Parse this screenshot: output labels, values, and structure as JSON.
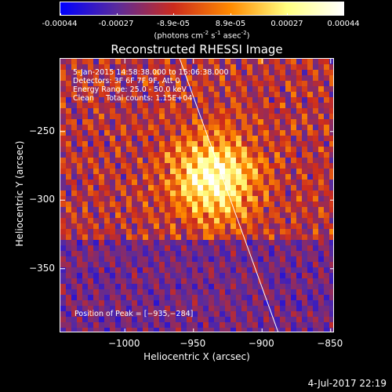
{
  "colorbar": {
    "tick_labels": [
      "-0.00044",
      "-0.00027",
      "-8.9e-05",
      "8.9e-05",
      "0.00027",
      "0.00044"
    ],
    "units_main": "(photons cm",
    "units_exp1": "-2",
    "units_s": " s",
    "units_exp2": "-1",
    "units_asec": " asec",
    "units_exp3": "-2",
    "units_close": ")"
  },
  "chart_data": {
    "type": "heatmap",
    "title": "Reconstructed RHESSI Image",
    "xlabel": "Heliocentric X (arcsec)",
    "ylabel": "Heliocentric Y (arcsec)",
    "xlim": [
      -1047,
      -847
    ],
    "ylim": [
      -397,
      -197
    ],
    "x_ticks": [
      -1000,
      -950,
      -900,
      -850
    ],
    "y_ticks": [
      -250,
      -300,
      -350
    ],
    "x_tick_labels": [
      "−1000",
      "−950",
      "−900",
      "−850"
    ],
    "y_tick_labels": [
      "−250",
      "−300",
      "−350"
    ],
    "colorbar_range": [
      -0.00044,
      0.00044
    ],
    "peak_position": [
      -935,
      -284
    ],
    "limb_line": [
      [
        -960,
        -197
      ],
      [
        -888,
        -397
      ]
    ],
    "annotations": [
      "5-Jan-2015 14:58:38.000 to 15:06:38.000",
      "Detectors: 3F 6F 7F 9F, Att 0",
      "Energy Range: 25.0 - 50.0 keV",
      "Clean     Total counts: 1.15E+04"
    ],
    "peak_label": "Position of Peak = [−935,−284]",
    "colormap": [
      "#0000ff",
      "#5a2b9c",
      "#cc2b1d",
      "#ff8a00",
      "#ffff80",
      "#ffffff"
    ]
  },
  "footer": {
    "date": "4-Jul-2017 22:19"
  }
}
